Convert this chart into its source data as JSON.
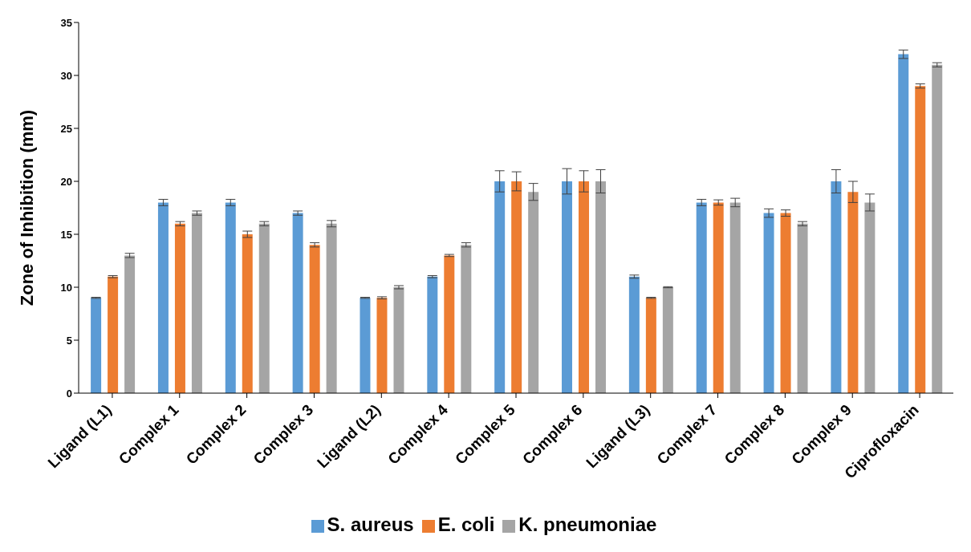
{
  "chart_data": {
    "type": "bar",
    "ylabel": "Zone of Inhibition (mm)",
    "categories": [
      "Ligand (L1)",
      "Complex 1",
      "Complex 2",
      "Complex 3",
      "Ligand (L2)",
      "Complex 4",
      "Complex 5",
      "Complex 6",
      "Ligand (L3)",
      "Complex 7",
      "Complex 8",
      "Complex 9",
      "Ciprofloxacin"
    ],
    "series": [
      {
        "name": "S. aureus",
        "color": "#5b9bd5",
        "values": [
          9,
          18,
          18,
          17,
          9,
          11,
          20,
          20,
          11,
          18,
          17,
          20,
          32
        ],
        "errors": [
          0.05,
          0.3,
          0.3,
          0.2,
          0.05,
          0.1,
          1,
          1.2,
          0.15,
          0.3,
          0.4,
          1.1,
          0.4
        ]
      },
      {
        "name": "E. coli",
        "color": "#ed7d31",
        "values": [
          11,
          16,
          15,
          14,
          9,
          13,
          20,
          20,
          9,
          18,
          17,
          19,
          29
        ],
        "errors": [
          0.1,
          0.2,
          0.3,
          0.2,
          0.1,
          0.1,
          0.9,
          1,
          0.05,
          0.25,
          0.3,
          1,
          0.2
        ]
      },
      {
        "name": "K. pneumoniae",
        "color": "#a5a5a5",
        "values": [
          13,
          17,
          16,
          16,
          10,
          14,
          19,
          20,
          10,
          18,
          16,
          18,
          31
        ],
        "errors": [
          0.2,
          0.2,
          0.2,
          0.3,
          0.15,
          0.2,
          0.8,
          1.1,
          0.05,
          0.4,
          0.2,
          0.8,
          0.2
        ]
      }
    ],
    "ylim": [
      0,
      35
    ],
    "yticks": [
      0,
      5,
      10,
      15,
      20,
      25,
      30,
      35
    ],
    "grid": false,
    "legend": "bottom"
  }
}
